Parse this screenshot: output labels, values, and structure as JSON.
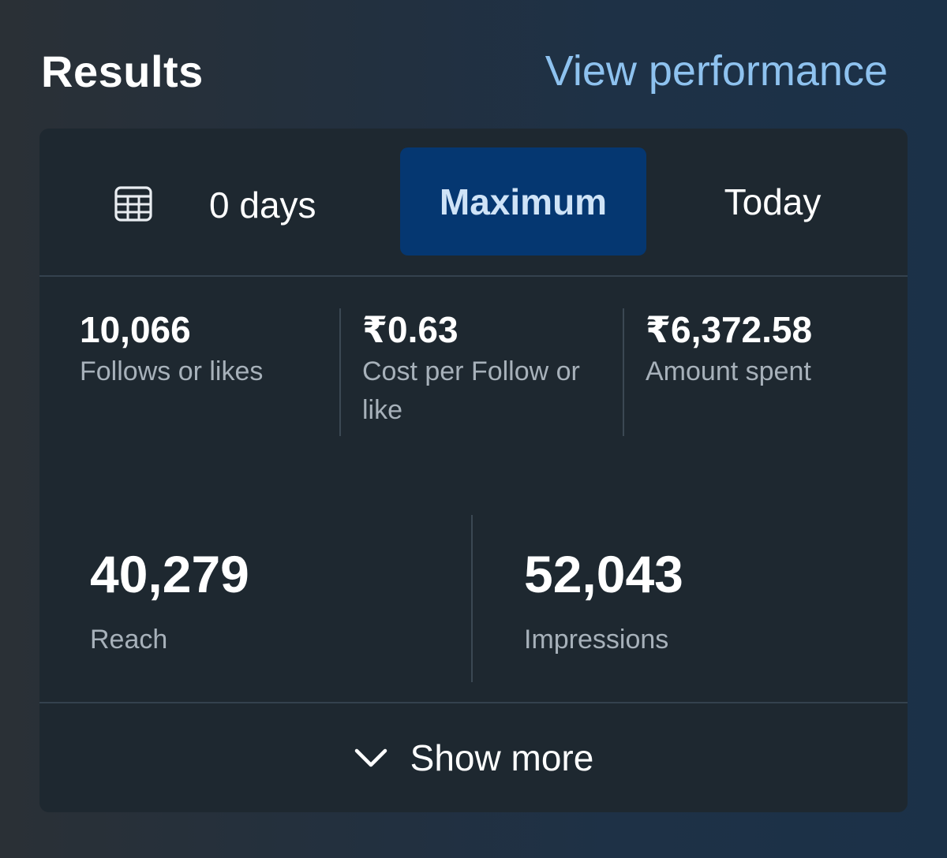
{
  "header": {
    "title": "Results",
    "view_link": "View performance"
  },
  "date_range": {
    "calendar_icon": "calendar-icon",
    "days": "0 days",
    "tabs": [
      {
        "label": "Maximum",
        "selected": true
      },
      {
        "label": "Today",
        "selected": false
      }
    ]
  },
  "metrics_top": [
    {
      "value": "10,066",
      "label": "Follows or likes"
    },
    {
      "value": "₹0.63",
      "label": "Cost per Follow or like"
    },
    {
      "value": "₹6,372.58",
      "label": "Amount spent"
    }
  ],
  "metrics_bottom": [
    {
      "value": "40,279",
      "label": "Reach"
    },
    {
      "value": "52,043",
      "label": "Impressions"
    }
  ],
  "footer": {
    "icon": "chevron-down-icon",
    "label": "Show more"
  },
  "colors": {
    "accent_link": "#8ec2ef",
    "selected_tab_bg": "#053771",
    "card_bg": "#1e2830",
    "muted_text": "#a7b1ba"
  }
}
